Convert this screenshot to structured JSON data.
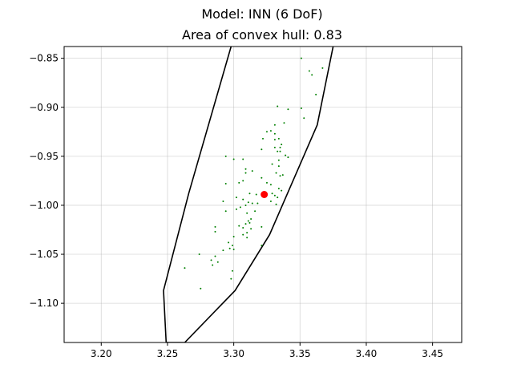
{
  "chart_data": {
    "type": "scatter",
    "title": "Model: INN (6 DoF)",
    "subtitle": "Area of convex hull: 0.83",
    "xlabel": "",
    "ylabel": "",
    "xlim": [
      3.172,
      3.472
    ],
    "ylim": [
      -1.14,
      -0.838
    ],
    "xticks": [
      3.2,
      3.25,
      3.3,
      3.35,
      3.4,
      3.45
    ],
    "xtick_labels": [
      "3.20",
      "3.25",
      "3.30",
      "3.35",
      "3.40",
      "3.45"
    ],
    "yticks": [
      -0.85,
      -0.9,
      -0.95,
      -1.0,
      -1.05,
      -1.1
    ],
    "ytick_labels": [
      "−0.85",
      "−0.90",
      "−0.95",
      "−1.00",
      "−1.05",
      "−1.10"
    ],
    "grid": true,
    "colors": {
      "points": "#008000",
      "reference": "#ff0000",
      "hull": "#000000",
      "grid": "#b0b0b0"
    },
    "hull": [
      [
        3.298,
        -0.838
      ],
      [
        3.266,
        -0.988
      ],
      [
        3.247,
        -1.087
      ],
      [
        3.249,
        -1.14
      ],
      [
        3.263,
        -1.14
      ],
      [
        3.301,
        -1.087
      ],
      [
        3.327,
        -1.03
      ],
      [
        3.363,
        -0.918
      ],
      [
        3.375,
        -0.838
      ]
    ],
    "reference_point": {
      "x": 3.323,
      "y": -0.989
    },
    "points": [
      [
        3.351,
        -0.85
      ],
      [
        3.367,
        -0.86
      ],
      [
        3.357,
        -0.863
      ],
      [
        3.359,
        -0.867
      ],
      [
        3.362,
        -0.887
      ],
      [
        3.333,
        -0.899
      ],
      [
        3.341,
        -0.902
      ],
      [
        3.351,
        -0.901
      ],
      [
        3.353,
        -0.911
      ],
      [
        3.338,
        -0.916
      ],
      [
        3.331,
        -0.918
      ],
      [
        3.328,
        -0.924
      ],
      [
        3.325,
        -0.925
      ],
      [
        3.331,
        -0.927
      ],
      [
        3.334,
        -0.932
      ],
      [
        3.322,
        -0.932
      ],
      [
        3.331,
        -0.933
      ],
      [
        3.336,
        -0.938
      ],
      [
        3.331,
        -0.941
      ],
      [
        3.335,
        -0.941
      ],
      [
        3.321,
        -0.943
      ],
      [
        3.333,
        -0.945
      ],
      [
        3.335,
        -0.945
      ],
      [
        3.339,
        -0.949
      ],
      [
        3.341,
        -0.951
      ],
      [
        3.294,
        -0.95
      ],
      [
        3.3,
        -0.953
      ],
      [
        3.307,
        -0.953
      ],
      [
        3.334,
        -0.954
      ],
      [
        3.329,
        -0.958
      ],
      [
        3.334,
        -0.96
      ],
      [
        3.309,
        -0.963
      ],
      [
        3.314,
        -0.965
      ],
      [
        3.309,
        -0.967
      ],
      [
        3.332,
        -0.967
      ],
      [
        3.337,
        -0.969
      ],
      [
        3.335,
        -0.97
      ],
      [
        3.321,
        -0.972
      ],
      [
        3.307,
        -0.975
      ],
      [
        3.304,
        -0.977
      ],
      [
        3.294,
        -0.978
      ],
      [
        3.325,
        -0.977
      ],
      [
        3.328,
        -0.979
      ],
      [
        3.334,
        -0.983
      ],
      [
        3.336,
        -0.985
      ],
      [
        3.312,
        -0.988
      ],
      [
        3.317,
        -0.989
      ],
      [
        3.329,
        -0.988
      ],
      [
        3.331,
        -0.99
      ],
      [
        3.333,
        -0.992
      ],
      [
        3.302,
        -0.992
      ],
      [
        3.307,
        -0.994
      ],
      [
        3.292,
        -0.996
      ],
      [
        3.311,
        -0.997
      ],
      [
        3.314,
        -0.998
      ],
      [
        3.318,
        -0.998
      ],
      [
        3.309,
        -1.0
      ],
      [
        3.328,
        -0.996
      ],
      [
        3.332,
        -0.999
      ],
      [
        3.305,
        -1.002
      ],
      [
        3.302,
        -1.004
      ],
      [
        3.294,
        -1.006
      ],
      [
        3.316,
        -1.006
      ],
      [
        3.31,
        -1.008
      ],
      [
        3.313,
        -1.014
      ],
      [
        3.311,
        -1.016
      ],
      [
        3.312,
        -1.018
      ],
      [
        3.309,
        -1.019
      ],
      [
        3.304,
        -1.021
      ],
      [
        3.321,
        -1.022
      ],
      [
        3.307,
        -1.023
      ],
      [
        3.313,
        -1.024
      ],
      [
        3.286,
        -1.022
      ],
      [
        3.286,
        -1.027
      ],
      [
        3.31,
        -1.028
      ],
      [
        3.307,
        -1.03
      ],
      [
        3.3,
        -1.032
      ],
      [
        3.31,
        -1.033
      ],
      [
        3.296,
        -1.038
      ],
      [
        3.299,
        -1.041
      ],
      [
        3.321,
        -1.041
      ],
      [
        3.297,
        -1.044
      ],
      [
        3.3,
        -1.045
      ],
      [
        3.292,
        -1.046
      ],
      [
        3.274,
        -1.05
      ],
      [
        3.286,
        -1.052
      ],
      [
        3.283,
        -1.056
      ],
      [
        3.288,
        -1.058
      ],
      [
        3.284,
        -1.061
      ],
      [
        3.263,
        -1.064
      ],
      [
        3.299,
        -1.067
      ],
      [
        3.298,
        -1.075
      ],
      [
        3.275,
        -1.085
      ]
    ]
  }
}
